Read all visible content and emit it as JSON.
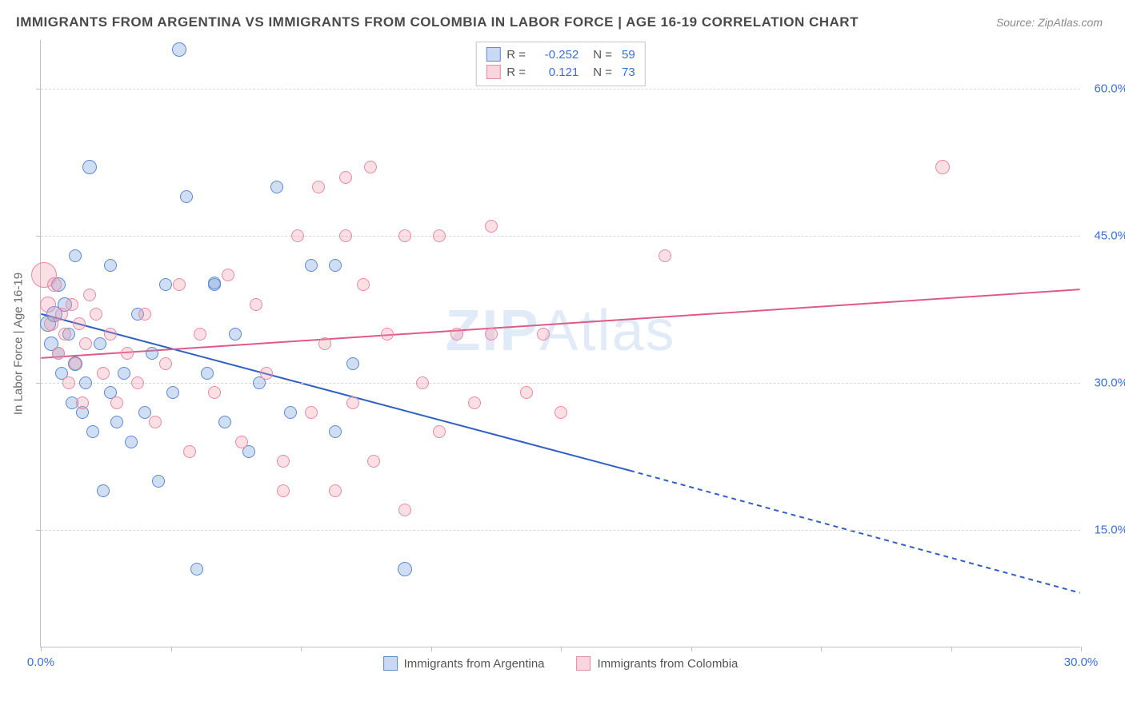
{
  "title": "IMMIGRANTS FROM ARGENTINA VS IMMIGRANTS FROM COLOMBIA IN LABOR FORCE | AGE 16-19 CORRELATION CHART",
  "source": "Source: ZipAtlas.com",
  "watermark_a": "ZIP",
  "watermark_b": "Atlas",
  "chart": {
    "type": "scatter",
    "ylabel": "In Labor Force | Age 16-19",
    "xlim": [
      0,
      30
    ],
    "ylim": [
      3,
      65
    ],
    "yticks": [
      15.0,
      30.0,
      45.0,
      60.0
    ],
    "ytick_labels": [
      "15.0%",
      "30.0%",
      "45.0%",
      "60.0%"
    ],
    "xticks": [
      0,
      3.75,
      7.5,
      11.25,
      15,
      18.75,
      22.5,
      26.25,
      30
    ],
    "xtick_labels_shown": {
      "0": "0.0%",
      "30": "30.0%"
    },
    "background_color": "#ffffff",
    "grid_color": "#d8d8d8",
    "axis_color": "#bfbfbf",
    "label_color": "#3b6fd6",
    "series": [
      {
        "name": "Immigrants from Argentina",
        "color_fill": "rgba(120,160,220,0.35)",
        "color_stroke": "#5b8ad0",
        "class": "blue",
        "legend_stat": {
          "R": "-0.252",
          "N": "59"
        },
        "trend": {
          "x1": 0,
          "y1": 37,
          "x2_solid": 17,
          "y2_solid": 21,
          "x2_dash": 30,
          "y2_dash": 8.5,
          "stroke": "#2f5fc4",
          "width": 2
        },
        "points": [
          {
            "x": 0.2,
            "y": 36,
            "r": 10
          },
          {
            "x": 0.3,
            "y": 34,
            "r": 9
          },
          {
            "x": 0.4,
            "y": 37,
            "r": 10
          },
          {
            "x": 0.5,
            "y": 33,
            "r": 8
          },
          {
            "x": 0.5,
            "y": 40,
            "r": 9
          },
          {
            "x": 0.6,
            "y": 31,
            "r": 8
          },
          {
            "x": 0.7,
            "y": 38,
            "r": 9
          },
          {
            "x": 0.8,
            "y": 35,
            "r": 8
          },
          {
            "x": 0.9,
            "y": 28,
            "r": 8
          },
          {
            "x": 1.0,
            "y": 32,
            "r": 9
          },
          {
            "x": 1.0,
            "y": 43,
            "r": 8
          },
          {
            "x": 1.2,
            "y": 27,
            "r": 8
          },
          {
            "x": 1.3,
            "y": 30,
            "r": 8
          },
          {
            "x": 1.4,
            "y": 52,
            "r": 9
          },
          {
            "x": 1.5,
            "y": 25,
            "r": 8
          },
          {
            "x": 1.7,
            "y": 34,
            "r": 8
          },
          {
            "x": 1.8,
            "y": 19,
            "r": 8
          },
          {
            "x": 2.0,
            "y": 29,
            "r": 8
          },
          {
            "x": 2.0,
            "y": 42,
            "r": 8
          },
          {
            "x": 2.2,
            "y": 26,
            "r": 8
          },
          {
            "x": 2.4,
            "y": 31,
            "r": 8
          },
          {
            "x": 2.6,
            "y": 24,
            "r": 8
          },
          {
            "x": 2.8,
            "y": 37,
            "r": 8
          },
          {
            "x": 3.0,
            "y": 27,
            "r": 8
          },
          {
            "x": 3.2,
            "y": 33,
            "r": 8
          },
          {
            "x": 3.4,
            "y": 20,
            "r": 8
          },
          {
            "x": 3.6,
            "y": 40,
            "r": 8
          },
          {
            "x": 3.8,
            "y": 29,
            "r": 8
          },
          {
            "x": 4.0,
            "y": 64,
            "r": 9
          },
          {
            "x": 4.2,
            "y": 49,
            "r": 8
          },
          {
            "x": 4.5,
            "y": 11,
            "r": 8
          },
          {
            "x": 4.8,
            "y": 31,
            "r": 8
          },
          {
            "x": 5.0,
            "y": 40,
            "r": 8
          },
          {
            "x": 5.0,
            "y": 40.2,
            "r": 8
          },
          {
            "x": 5.3,
            "y": 26,
            "r": 8
          },
          {
            "x": 5.6,
            "y": 35,
            "r": 8
          },
          {
            "x": 6.0,
            "y": 23,
            "r": 8
          },
          {
            "x": 6.3,
            "y": 30,
            "r": 8
          },
          {
            "x": 6.8,
            "y": 50,
            "r": 8
          },
          {
            "x": 7.2,
            "y": 27,
            "r": 8
          },
          {
            "x": 7.8,
            "y": 42,
            "r": 8
          },
          {
            "x": 8.5,
            "y": 25,
            "r": 8
          },
          {
            "x": 8.5,
            "y": 42,
            "r": 8
          },
          {
            "x": 9.0,
            "y": 32,
            "r": 8
          },
          {
            "x": 10.5,
            "y": 11,
            "r": 9
          }
        ]
      },
      {
        "name": "Immigrants from Colombia",
        "color_fill": "rgba(240,150,170,0.30)",
        "color_stroke": "#e88aa2",
        "class": "pink",
        "legend_stat": {
          "R": "0.121",
          "N": "73"
        },
        "trend": {
          "x1": 0,
          "y1": 32.5,
          "x2_solid": 30,
          "y2_solid": 39.5,
          "stroke": "#e05a85",
          "width": 2
        },
        "points": [
          {
            "x": 0.1,
            "y": 41,
            "r": 16
          },
          {
            "x": 0.2,
            "y": 38,
            "r": 10
          },
          {
            "x": 0.3,
            "y": 36,
            "r": 9
          },
          {
            "x": 0.4,
            "y": 40,
            "r": 9
          },
          {
            "x": 0.5,
            "y": 33,
            "r": 8
          },
          {
            "x": 0.6,
            "y": 37,
            "r": 8
          },
          {
            "x": 0.7,
            "y": 35,
            "r": 8
          },
          {
            "x": 0.8,
            "y": 30,
            "r": 8
          },
          {
            "x": 0.9,
            "y": 38,
            "r": 8
          },
          {
            "x": 1.0,
            "y": 32,
            "r": 8
          },
          {
            "x": 1.1,
            "y": 36,
            "r": 8
          },
          {
            "x": 1.2,
            "y": 28,
            "r": 8
          },
          {
            "x": 1.3,
            "y": 34,
            "r": 8
          },
          {
            "x": 1.4,
            "y": 39,
            "r": 8
          },
          {
            "x": 1.6,
            "y": 37,
            "r": 8
          },
          {
            "x": 1.8,
            "y": 31,
            "r": 8
          },
          {
            "x": 2.0,
            "y": 35,
            "r": 8
          },
          {
            "x": 2.2,
            "y": 28,
            "r": 8
          },
          {
            "x": 2.5,
            "y": 33,
            "r": 8
          },
          {
            "x": 2.8,
            "y": 30,
            "r": 8
          },
          {
            "x": 3.0,
            "y": 37,
            "r": 8
          },
          {
            "x": 3.3,
            "y": 26,
            "r": 8
          },
          {
            "x": 3.6,
            "y": 32,
            "r": 8
          },
          {
            "x": 4.0,
            "y": 40,
            "r": 8
          },
          {
            "x": 4.3,
            "y": 23,
            "r": 8
          },
          {
            "x": 4.6,
            "y": 35,
            "r": 8
          },
          {
            "x": 5.0,
            "y": 29,
            "r": 8
          },
          {
            "x": 5.4,
            "y": 41,
            "r": 8
          },
          {
            "x": 5.8,
            "y": 24,
            "r": 8
          },
          {
            "x": 6.2,
            "y": 38,
            "r": 8
          },
          {
            "x": 6.5,
            "y": 31,
            "r": 8
          },
          {
            "x": 7.0,
            "y": 22,
            "r": 8
          },
          {
            "x": 7.0,
            "y": 19,
            "r": 8
          },
          {
            "x": 7.4,
            "y": 45,
            "r": 8
          },
          {
            "x": 7.8,
            "y": 27,
            "r": 8
          },
          {
            "x": 8.0,
            "y": 50,
            "r": 8
          },
          {
            "x": 8.2,
            "y": 34,
            "r": 8
          },
          {
            "x": 8.5,
            "y": 19,
            "r": 8
          },
          {
            "x": 8.8,
            "y": 51,
            "r": 8
          },
          {
            "x": 8.8,
            "y": 45,
            "r": 8
          },
          {
            "x": 9.0,
            "y": 28,
            "r": 8
          },
          {
            "x": 9.3,
            "y": 40,
            "r": 8
          },
          {
            "x": 9.6,
            "y": 22,
            "r": 8
          },
          {
            "x": 9.5,
            "y": 52,
            "r": 8
          },
          {
            "x": 10.0,
            "y": 35,
            "r": 8
          },
          {
            "x": 10.5,
            "y": 17,
            "r": 8
          },
          {
            "x": 10.5,
            "y": 45,
            "r": 8
          },
          {
            "x": 11.0,
            "y": 30,
            "r": 8
          },
          {
            "x": 11.5,
            "y": 25,
            "r": 8
          },
          {
            "x": 11.5,
            "y": 45,
            "r": 8
          },
          {
            "x": 12.0,
            "y": 35,
            "r": 8
          },
          {
            "x": 12.5,
            "y": 28,
            "r": 8
          },
          {
            "x": 13.0,
            "y": 46,
            "r": 8
          },
          {
            "x": 13.0,
            "y": 35,
            "r": 8
          },
          {
            "x": 14.0,
            "y": 29,
            "r": 8
          },
          {
            "x": 14.5,
            "y": 35,
            "r": 8
          },
          {
            "x": 15.0,
            "y": 27,
            "r": 8
          },
          {
            "x": 18.0,
            "y": 43,
            "r": 8
          },
          {
            "x": 26.0,
            "y": 52,
            "r": 9
          }
        ]
      }
    ],
    "legend_bottom": [
      {
        "class": "blue",
        "label": "Immigrants from Argentina"
      },
      {
        "class": "pink",
        "label": "Immigrants from Colombia"
      }
    ]
  }
}
